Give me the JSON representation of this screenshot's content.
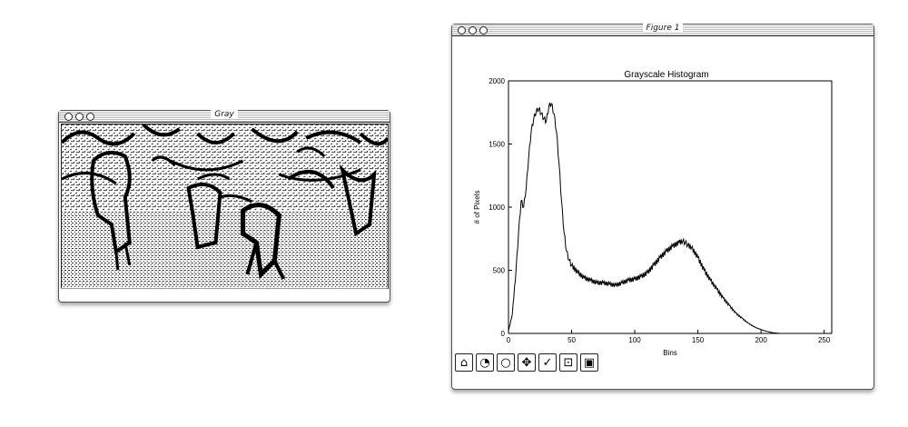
{
  "gray_window": {
    "title": "Gray"
  },
  "figure_window": {
    "title": "Figure 1",
    "toolbar": [
      {
        "name": "home-icon",
        "glyph": "⌂"
      },
      {
        "name": "back-icon",
        "glyph": "◔"
      },
      {
        "name": "forward-icon",
        "glyph": "○"
      },
      {
        "name": "pan-icon",
        "glyph": "✥"
      },
      {
        "name": "zoom-icon",
        "glyph": "✓"
      },
      {
        "name": "subplots-icon",
        "glyph": "⊡"
      },
      {
        "name": "save-icon",
        "glyph": "▣"
      }
    ]
  },
  "chart_data": {
    "type": "line",
    "title": "Grayscale Histogram",
    "xlabel": "Bins",
    "ylabel": "# of Pixels",
    "xlim": [
      0,
      256
    ],
    "ylim": [
      0,
      2000
    ],
    "xticks": [
      "0",
      "50",
      "100",
      "150",
      "200",
      "250"
    ],
    "yticks": [
      "0",
      "500",
      "1000",
      "1500",
      "2000"
    ],
    "grid": false,
    "series": [
      {
        "x": [
          0,
          3,
          6,
          8,
          10,
          12,
          14,
          16,
          18,
          20,
          22,
          24,
          26,
          28,
          30,
          32,
          34,
          36,
          38,
          40,
          42,
          44,
          46,
          48,
          50,
          55,
          60,
          65,
          70,
          75,
          80,
          85,
          90,
          95,
          100,
          105,
          110,
          115,
          120,
          125,
          130,
          135,
          138,
          140,
          142,
          145,
          150,
          155,
          160,
          165,
          170,
          175,
          180,
          185,
          190,
          195,
          200,
          205,
          210,
          215
        ],
        "y": [
          20,
          150,
          500,
          800,
          1050,
          1000,
          1150,
          1400,
          1600,
          1700,
          1760,
          1780,
          1740,
          1700,
          1680,
          1800,
          1820,
          1740,
          1600,
          1350,
          1050,
          800,
          650,
          580,
          540,
          480,
          440,
          420,
          400,
          400,
          390,
          380,
          400,
          420,
          430,
          450,
          480,
          540,
          600,
          650,
          690,
          720,
          730,
          720,
          700,
          680,
          600,
          500,
          420,
          350,
          280,
          220,
          160,
          120,
          80,
          50,
          30,
          15,
          5,
          0
        ]
      }
    ]
  }
}
